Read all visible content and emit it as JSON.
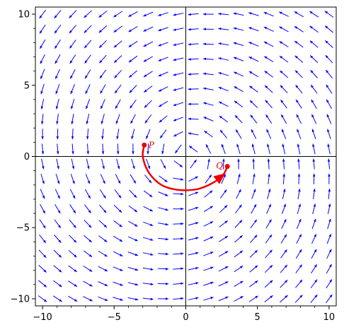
{
  "chart_data": {
    "type": "vector-field",
    "title": "",
    "xlabel": "",
    "ylabel": "",
    "xlim": [
      -10.5,
      10.5
    ],
    "ylim": [
      -10.5,
      10.5
    ],
    "x_ticks": [
      -10,
      -5,
      0,
      5,
      10
    ],
    "y_ticks": [
      -10,
      -5,
      0,
      5,
      10
    ],
    "x_tick_labels": [
      "−10",
      "−5",
      "0",
      "5",
      "10"
    ],
    "y_tick_labels": [
      "−10",
      "−5",
      "0",
      "5",
      "10"
    ],
    "grid": false,
    "field": {
      "color": "#0000ff",
      "description": "rotational flow: vector (-y, x) dominant, arrows spiral around origin",
      "grid_start": -10,
      "grid_end": 10,
      "grid_count": 20
    },
    "curve": {
      "color": "#ee0000",
      "points": [
        [
          -2.9,
          0.8
        ],
        [
          -3.0,
          0.0
        ],
        [
          -2.6,
          -1.1
        ],
        [
          -1.7,
          -2.0
        ],
        [
          -0.5,
          -2.35
        ],
        [
          0.8,
          -2.3
        ],
        [
          1.9,
          -1.85
        ],
        [
          2.6,
          -1.3
        ],
        [
          2.9,
          -0.7
        ]
      ],
      "start_label": "P",
      "end_label": "Q",
      "start": [
        -2.9,
        0.8
      ],
      "end": [
        2.9,
        -0.7
      ]
    }
  }
}
